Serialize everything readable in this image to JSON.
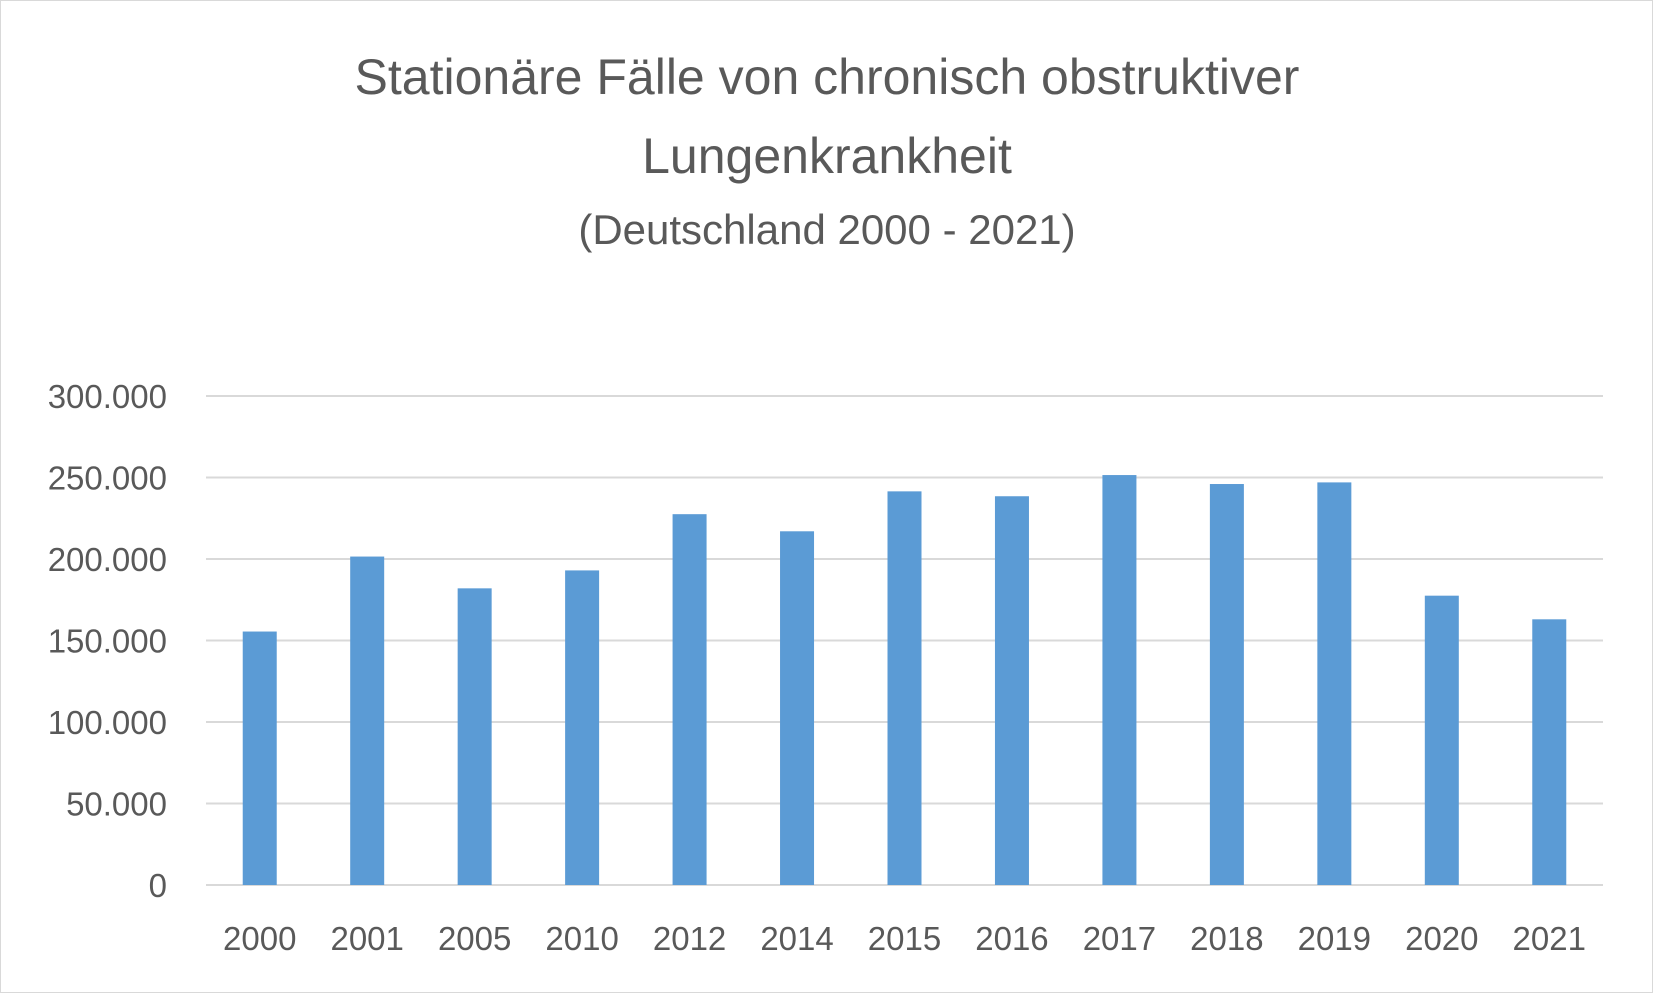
{
  "chart_data": {
    "type": "bar",
    "title_lines": [
      "Stationäre Fälle von chronisch obstruktiver",
      "Lungenkrankheit"
    ],
    "subtitle": "(Deutschland 2000 - 2021)",
    "xlabel": "",
    "ylabel": "",
    "categories": [
      "2000",
      "2001",
      "2005",
      "2010",
      "2012",
      "2014",
      "2015",
      "2016",
      "2017",
      "2018",
      "2019",
      "2020",
      "2021"
    ],
    "series": [
      {
        "values": [
          155500,
          201500,
          182000,
          193000,
          227500,
          217000,
          241500,
          238500,
          251500,
          246000,
          247000,
          177500,
          163000
        ],
        "color": "#5b9bd5"
      }
    ],
    "ylim": [
      0,
      300000
    ],
    "yticks": [
      0,
      50000,
      100000,
      150000,
      200000,
      250000,
      300000
    ],
    "ytick_labels": [
      "0",
      "50.000",
      "100.000",
      "150.000",
      "200.000",
      "250.000",
      "300.000"
    ],
    "grid": true,
    "legend": "none",
    "colors": {
      "bar": "#5b9bd5",
      "grid": "#d9d9d9",
      "text": "#595959"
    }
  }
}
